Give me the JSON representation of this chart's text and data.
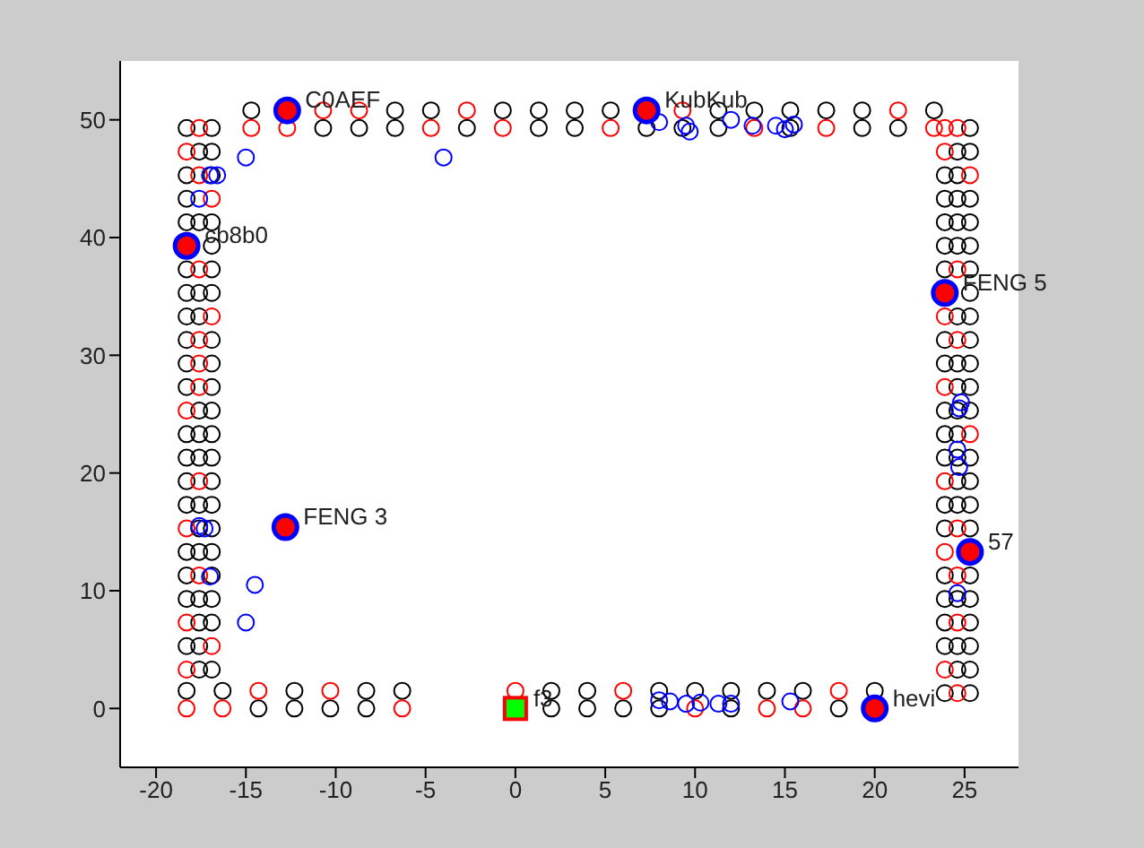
{
  "chart_data": {
    "type": "scatter",
    "xlim": [
      -22,
      28
    ],
    "ylim": [
      -5,
      55
    ],
    "xticks": [
      -20,
      -15,
      -10,
      -5,
      0,
      5,
      10,
      15,
      20,
      25
    ],
    "yticks": [
      0,
      10,
      20,
      30,
      40,
      50
    ],
    "grid": false,
    "legend": false,
    "marker": "circle",
    "series": [
      {
        "color": "#000000",
        "x": [
          -18.3,
          -16.9,
          -17.6,
          -16.9,
          -18.3,
          -16.9,
          -18.3,
          -18.3,
          -17.6,
          -16.9,
          -16.9,
          -18.3,
          -16.9,
          -18.3,
          -17.6,
          -16.9,
          -18.3,
          -17.6,
          -18.3,
          -16.9,
          -18.3,
          -16.9,
          -18.3,
          -16.9,
          -17.6,
          -16.9,
          -18.3,
          -17.6,
          -16.9,
          -18.3,
          -17.6,
          -16.9,
          -18.3,
          -16.9,
          -18.3,
          -17.6,
          -16.9,
          -17.6,
          -16.9,
          -18.3,
          -17.6,
          -16.9,
          -18.3,
          -16.9,
          -18.3,
          -17.6,
          -16.9,
          -17.6,
          -16.9,
          -18.3,
          -17.6,
          -17.6,
          -16.9
        ],
        "values": [
          49.3,
          49.3,
          47.3,
          47.3,
          45.3,
          45.3,
          43.3,
          41.3,
          41.3,
          41.3,
          39.3,
          37.3,
          37.3,
          35.3,
          35.3,
          35.3,
          33.3,
          33.3,
          31.3,
          31.3,
          29.3,
          29.3,
          27.3,
          27.3,
          25.3,
          25.3,
          23.3,
          23.3,
          23.3,
          21.3,
          21.3,
          21.3,
          19.3,
          19.3,
          17.3,
          17.3,
          17.3,
          15.3,
          15.3,
          13.3,
          13.3,
          13.3,
          11.3,
          11.3,
          9.3,
          9.3,
          9.3,
          7.3,
          7.3,
          5.3,
          5.3,
          3.3,
          3.3
        ]
      },
      {
        "color": "#000000",
        "x": [
          25.3,
          24.6,
          25.3,
          23.9,
          24.6,
          23.9,
          24.6,
          25.3,
          23.9,
          24.6,
          25.3,
          23.9,
          24.6,
          25.3,
          23.9,
          25.3,
          25.3,
          24.6,
          25.3,
          23.9,
          25.3,
          23.9,
          24.6,
          25.3,
          24.6,
          25.3,
          23.9,
          24.6,
          25.3,
          23.9,
          24.6,
          23.9,
          24.6,
          25.3,
          24.6,
          25.3,
          23.9,
          24.6,
          25.3,
          23.9,
          25.3,
          23.9,
          25.3,
          23.9,
          24.6,
          25.3,
          23.9,
          25.3,
          23.9,
          24.6,
          25.3,
          24.6,
          25.3,
          23.9,
          25.3
        ],
        "values": [
          49.3,
          47.3,
          47.3,
          45.3,
          45.3,
          43.3,
          43.3,
          43.3,
          41.3,
          41.3,
          41.3,
          39.3,
          39.3,
          39.3,
          37.3,
          37.3,
          35.3,
          33.3,
          33.3,
          31.3,
          31.3,
          29.3,
          29.3,
          29.3,
          27.3,
          27.3,
          25.3,
          25.3,
          25.3,
          23.3,
          23.3,
          21.3,
          21.3,
          21.3,
          19.3,
          19.3,
          17.3,
          17.3,
          17.3,
          15.3,
          15.3,
          11.3,
          11.3,
          9.3,
          9.3,
          9.3,
          7.3,
          7.3,
          5.3,
          5.3,
          5.3,
          3.3,
          3.3,
          1.3,
          1.3
        ]
      },
      {
        "color": "#000000",
        "x": [
          -14.7,
          -10.7,
          -8.7,
          -6.7,
          -6.7,
          -4.7,
          -2.7,
          -0.7,
          1.3,
          1.3,
          3.3,
          3.3,
          5.3,
          7.3,
          9.3,
          11.3,
          11.3,
          13.3,
          15.3,
          15.3,
          17.3,
          19.3,
          19.3,
          21.3,
          23.3
        ],
        "values": [
          50.8,
          49.3,
          49.3,
          50.8,
          49.3,
          50.8,
          49.3,
          50.8,
          50.8,
          49.3,
          50.8,
          49.3,
          50.8,
          49.3,
          49.3,
          50.8,
          49.3,
          50.8,
          50.8,
          49.3,
          50.8,
          50.8,
          49.3,
          49.3,
          50.8
        ]
      },
      {
        "color": "#000000",
        "x": [
          -18.3,
          -16.3,
          -14.3,
          -12.3,
          -12.3,
          -10.3,
          -8.3,
          -8.3,
          -6.3,
          2,
          2,
          4,
          4,
          6,
          8,
          8,
          10,
          12,
          12,
          14,
          16,
          18,
          20
        ],
        "values": [
          1.5,
          1.5,
          0,
          1.5,
          0,
          0,
          1.5,
          0,
          1.5,
          1.5,
          0,
          1.5,
          0,
          0,
          1.5,
          0,
          1.5,
          1.5,
          0,
          1.5,
          1.5,
          0,
          1.5
        ]
      },
      {
        "color": "#ff0000",
        "x": [
          -17.6,
          -18.3,
          -17.6,
          -16.9,
          -17.6,
          -16.9,
          -17.6,
          -17.6,
          -17.6,
          -18.3,
          -17.6,
          -18.3,
          -17.6,
          -18.3,
          -16.9,
          -18.3,
          23.9,
          24.6,
          23.9,
          25.3,
          24.6,
          23.9,
          24.6,
          23.9,
          25.3,
          23.9,
          24.6,
          23.9,
          24.6,
          24.6,
          23.9,
          24.6,
          -14.7,
          -12.7,
          -10.7,
          -8.7,
          -4.7,
          -2.7,
          -0.7,
          5.3,
          9.3,
          13.3,
          17.3,
          21.3,
          23.3,
          -18.3,
          -16.3,
          -14.3,
          -10.3,
          -6.3,
          0,
          6,
          10,
          14,
          16,
          18
        ],
        "values": [
          49.3,
          47.3,
          45.3,
          43.3,
          37.3,
          33.3,
          31.3,
          29.3,
          27.3,
          25.3,
          19.3,
          15.3,
          11.3,
          7.3,
          5.3,
          3.3,
          49.3,
          49.3,
          47.3,
          45.3,
          37.3,
          33.3,
          31.3,
          27.3,
          23.3,
          19.3,
          15.3,
          13.3,
          11.3,
          7.3,
          3.3,
          1.3,
          49.3,
          49.3,
          50.8,
          50.8,
          49.3,
          50.8,
          49.3,
          49.3,
          50.8,
          49.3,
          49.3,
          50.8,
          49.3,
          0,
          0,
          1.5,
          1.5,
          0,
          1.5,
          1.5,
          0,
          0,
          0,
          1.5
        ]
      },
      {
        "color": "#0000ff",
        "x": [
          -15,
          -4,
          -17,
          -16.6,
          -17.6,
          -17.6,
          -17.3,
          -17,
          -14.5,
          -15,
          8,
          9.5,
          9.7,
          12,
          13.2,
          14.5,
          15,
          15.5,
          24.7,
          24.8,
          24.6,
          24.7,
          24.6,
          8,
          8.6,
          9.5,
          10.3,
          11.3,
          12,
          15.3
        ],
        "values": [
          46.8,
          46.8,
          45.3,
          45.3,
          43.3,
          15.5,
          15.3,
          11.2,
          10.5,
          7.3,
          49.8,
          49.5,
          49,
          50,
          49.5,
          49.5,
          49.2,
          49.6,
          25.5,
          26,
          22,
          20.5,
          9.8,
          0.7,
          0.6,
          0.4,
          0.5,
          0.4,
          0.4,
          0.6
        ]
      },
      {
        "color": "#ff0000",
        "x": [
          -12.7,
          7.3,
          -18.3,
          23.9,
          -12.8,
          25.3,
          20
        ],
        "values": [
          50.8,
          50.8,
          39.3,
          35.3,
          15.4,
          13.3,
          0
        ]
      },
      {
        "color": "#00ff00",
        "marker": "square",
        "x": [
          0
        ],
        "values": [
          0
        ]
      }
    ],
    "annotations": [
      {
        "text": "C0AEF",
        "x": -12.7,
        "y": 50.8
      },
      {
        "text": "KubKub",
        "x": 7.3,
        "y": 50.8
      },
      {
        "text": "cb8b0",
        "x": -18.3,
        "y": 39.3
      },
      {
        "text": "FENG 5",
        "x": 23.9,
        "y": 35.3
      },
      {
        "text": "FENG 3",
        "x": -12.8,
        "y": 15.4
      },
      {
        "text": "57",
        "x": 25.3,
        "y": 13.3
      },
      {
        "text": "hevi",
        "x": 20,
        "y": 0
      },
      {
        "text": "f3",
        "x": 0,
        "y": 0
      }
    ]
  }
}
